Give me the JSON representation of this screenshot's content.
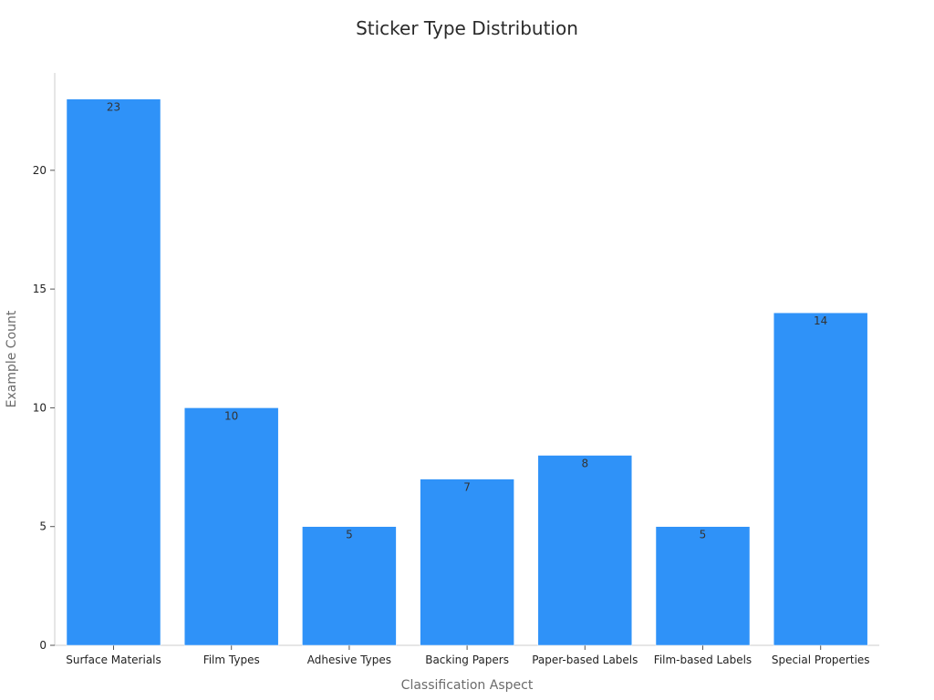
{
  "chart_data": {
    "type": "bar",
    "title": "Sticker Type Distribution",
    "xlabel": "Classification Aspect",
    "ylabel": "Example Count",
    "categories": [
      "Surface Materials",
      "Film Types",
      "Adhesive Types",
      "Backing Papers",
      "Paper-based Labels",
      "Film-based Labels",
      "Special Properties"
    ],
    "values": [
      23,
      10,
      5,
      7,
      8,
      5,
      14
    ],
    "ylim": [
      0,
      24.1
    ],
    "yticks": [
      0,
      5,
      10,
      15,
      20
    ],
    "bar_color": "#2f92f8",
    "grid": false,
    "data_labels": true
  }
}
